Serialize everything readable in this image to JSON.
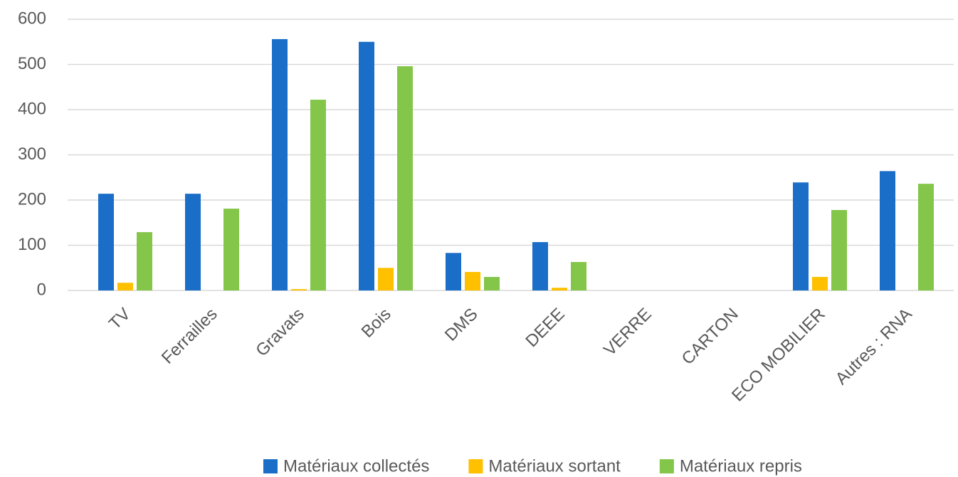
{
  "chart_data": {
    "type": "bar",
    "categories": [
      "TV",
      "Ferrailles",
      "Gravats",
      "Bois",
      "DMS",
      "DEEE",
      "VERRE",
      "CARTON",
      "ECO MOBILIER",
      "Autres : RNA"
    ],
    "series": [
      {
        "name": "Matériaux collectés",
        "color": "#1a6ec8",
        "values": [
          214,
          214,
          556,
          550,
          83,
          107,
          0,
          0,
          239,
          264
        ]
      },
      {
        "name": "Matériaux sortant",
        "color": "#ffc000",
        "values": [
          17,
          0,
          3,
          50,
          41,
          6,
          0,
          0,
          30,
          0
        ]
      },
      {
        "name": "Matériaux repris",
        "color": "#84c64a",
        "values": [
          129,
          181,
          422,
          496,
          30,
          63,
          0,
          0,
          178,
          236
        ]
      }
    ],
    "ylim": [
      0,
      600
    ],
    "yticks": [
      0,
      100,
      200,
      300,
      400,
      500,
      600
    ],
    "grid": true,
    "legend": "bottom-right"
  }
}
